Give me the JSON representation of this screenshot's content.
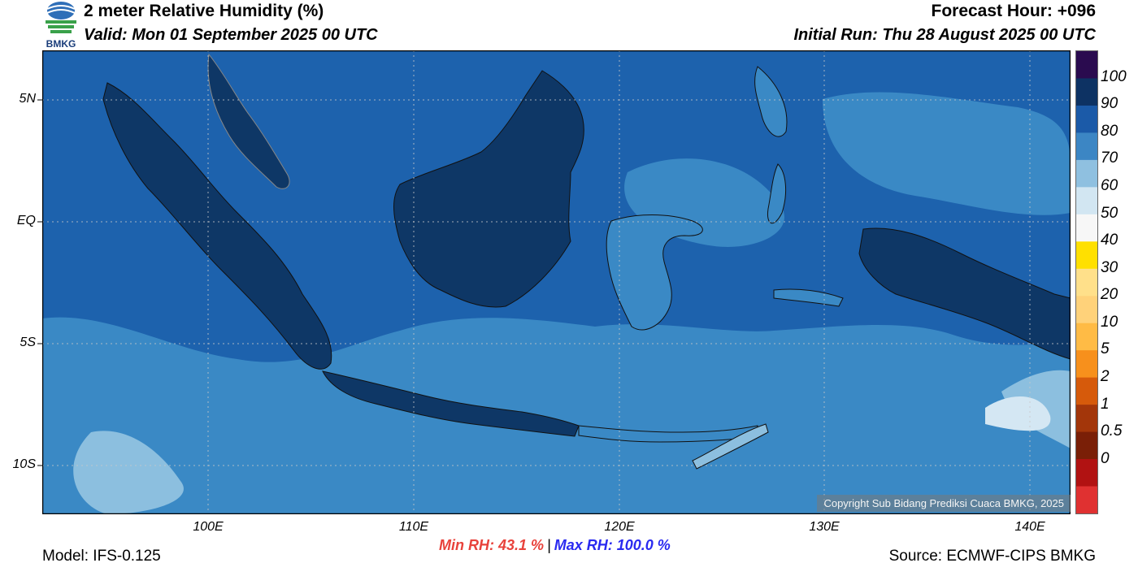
{
  "header": {
    "logo_text": "BMKG",
    "title": "2 meter Relative Humidity (%)",
    "valid": "Valid: Mon 01 September 2025 00 UTC",
    "forecast_hour": "Forecast Hour: +096",
    "initial_run": "Initial Run: Thu 28 August 2025 00 UTC"
  },
  "axes": {
    "lat_labels": [
      "5N",
      "EQ",
      "5S",
      "10S"
    ],
    "lon_labels": [
      "100E",
      "110E",
      "120E",
      "130E",
      "140E"
    ],
    "grid": true
  },
  "colorbar": {
    "labels": [
      "100",
      "90",
      "80",
      "70",
      "60",
      "50",
      "40",
      "30",
      "20",
      "10",
      "5",
      "2",
      "1",
      "0.5",
      "0"
    ],
    "colors": [
      "#2a0b4f",
      "#0d3263",
      "#1b5aa8",
      "#3c86c4",
      "#8fc0e0",
      "#d2e6f2",
      "#f7f7f7",
      "#ffe000",
      "#ffe08a",
      "#ffd27a",
      "#ffbb45",
      "#f7901c",
      "#d65a0b",
      "#a3360a",
      "#7a1f07",
      "#b11212",
      "#e03131"
    ]
  },
  "copyright": "Copyright Sub Bidang Prediksi Cuaca BMKG, 2025",
  "stats": {
    "min_rh": "Min RH:  43.1 %",
    "separator": "|",
    "max_rh": "Max RH: 100.0 %"
  },
  "footer": {
    "model": "Model: IFS-0.125",
    "source": "Source: ECMWF-CIPS BMKG"
  },
  "map_colors": {
    "sea_base": "#1d62ad",
    "moderate": "#3a89c5",
    "humid": "#0e3766",
    "light": "#8cbfdf",
    "very_light": "#d4e7f3",
    "coast": "#111111"
  }
}
